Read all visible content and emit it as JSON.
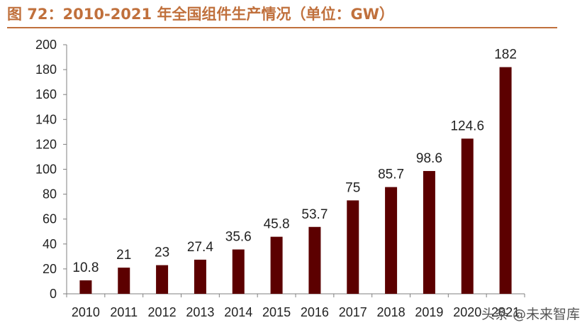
{
  "title": "图 72：2010-2021 年全国组件生产情况（单位：GW）",
  "watermark": "头条 @未来智库",
  "colors": {
    "title": "#C0703C",
    "bar": "#5C0000",
    "axis": "#808080"
  },
  "chart_data": {
    "type": "bar",
    "categories": [
      "2010",
      "2011",
      "2012",
      "2013",
      "2014",
      "2015",
      "2016",
      "2017",
      "2018",
      "2019",
      "2020",
      "2021"
    ],
    "values": [
      10.8,
      21,
      23,
      27.4,
      35.6,
      45.8,
      53.7,
      75,
      85.7,
      98.6,
      124.6,
      182
    ],
    "ylim": [
      0,
      200
    ],
    "yticks": [
      0,
      20,
      40,
      60,
      80,
      100,
      120,
      140,
      160,
      180,
      200
    ],
    "grid": false,
    "legend": "none"
  }
}
